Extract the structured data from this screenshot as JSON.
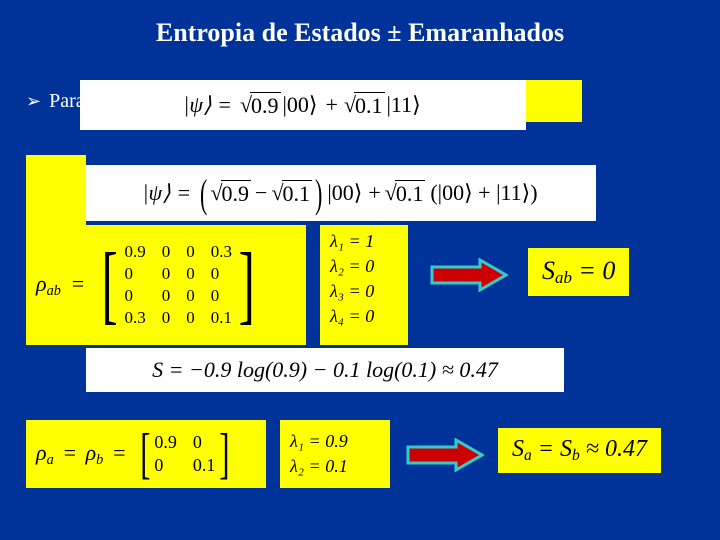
{
  "colors": {
    "bg": "#003399",
    "highlight": "#ffff00",
    "white": "#ffffff",
    "arrow_fill": "#cc0000",
    "arrow_stroke": "#33cccc"
  },
  "title": "Entropia de Estados ± Emaranhados",
  "bullet": {
    "symbol": "➢",
    "text": "Para um sistema misto:"
  },
  "eq_psi1": {
    "lhs": "|ψ⟩ =",
    "term1_root": "0.9",
    "term1_ket": "|00⟩",
    "plus": "+",
    "term2_root": "0.1",
    "term2_ket": "|11⟩"
  },
  "eq_psi2": {
    "lhs": "|ψ⟩ =",
    "open": "(",
    "close": ")",
    "term1_a_root": "0.9",
    "minus": "−",
    "term1_b_root": "0.1",
    "ket1": "|00⟩",
    "plus": "+",
    "term2_root": "0.1",
    "group": "(|00⟩ + |11⟩)"
  },
  "rho_ab": {
    "label": "ρ",
    "sub": "ab",
    "eq": "=",
    "rows": [
      [
        "0.9",
        "0",
        "0",
        "0.3"
      ],
      [
        "0",
        "0",
        "0",
        "0"
      ],
      [
        "0",
        "0",
        "0",
        "0"
      ],
      [
        "0.3",
        "0",
        "0",
        "0.1"
      ]
    ]
  },
  "eig1": {
    "lines": [
      "λ₁ = 1",
      "λ₂ = 0",
      "λ₃ = 0",
      "λ₄ = 0"
    ]
  },
  "sab": {
    "text_prefix": "S",
    "sub": "ab",
    "text_rest": " = 0"
  },
  "entropy_eq": {
    "text": "S = −0.9 log(0.9) − 0.1 log(0.1) ≈ 0.47"
  },
  "rho_a": {
    "label_a": "ρ",
    "sub_a": "a",
    "eq": "=",
    "label_b": "ρ",
    "sub_b": "b",
    "eqb": "=",
    "rows": [
      [
        "0.9",
        "0"
      ],
      [
        "0",
        "0.1"
      ]
    ]
  },
  "eig2": {
    "lines": [
      "λ₁ = 0.9",
      "λ₂ = 0.1"
    ]
  },
  "sab2": {
    "text": "Sₐ = S_b ≈ 0.47"
  }
}
